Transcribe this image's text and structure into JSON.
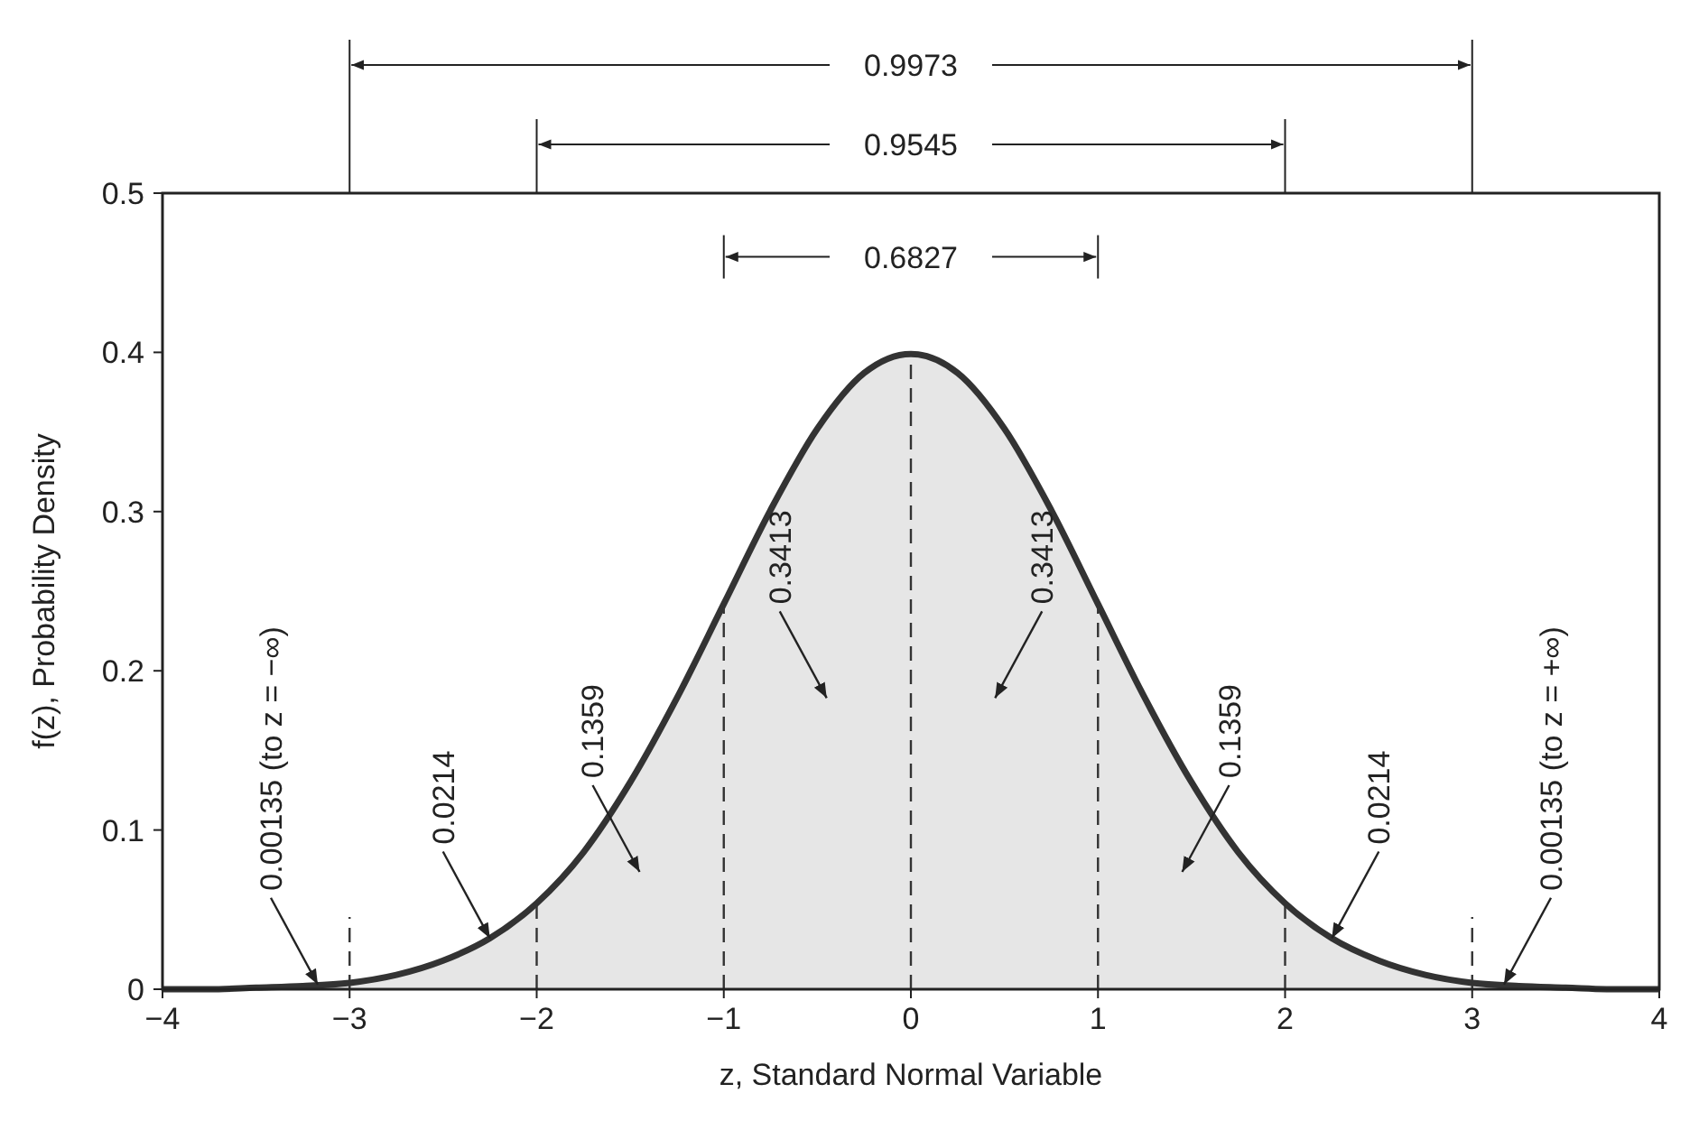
{
  "chart_data": {
    "type": "area",
    "xlabel": "z, Standard Normal Variable",
    "ylabel": "f(z), Probability Density",
    "xlim": [
      -4,
      4
    ],
    "ylim": [
      0,
      0.5
    ],
    "xticks": [
      {
        "value": -4,
        "label": "−4"
      },
      {
        "value": -3,
        "label": "−3"
      },
      {
        "value": -2,
        "label": "−2"
      },
      {
        "value": -1,
        "label": "−1"
      },
      0,
      1,
      2,
      3,
      4
    ],
    "yticks": [
      0,
      0.1,
      0.2,
      0.3,
      0.4,
      0.5
    ],
    "grid": false,
    "x": [
      -4,
      -3.75,
      -3.5,
      -3.25,
      -3,
      -2.75,
      -2.5,
      -2.25,
      -2,
      -1.75,
      -1.5,
      -1.25,
      -1,
      -0.75,
      -0.5,
      -0.25,
      0,
      0.25,
      0.5,
      0.75,
      1,
      1.25,
      1.5,
      1.75,
      2,
      2.25,
      2.5,
      2.75,
      3,
      3.25,
      3.5,
      3.75,
      4
    ],
    "series": [
      {
        "color": "#333333",
        "values": [
          0.0,
          0.0,
          0.001,
          0.002,
          0.004,
          0.009,
          0.018,
          0.032,
          0.054,
          0.086,
          0.13,
          0.183,
          0.242,
          0.301,
          0.352,
          0.387,
          0.399,
          0.387,
          0.352,
          0.301,
          0.242,
          0.183,
          0.13,
          0.086,
          0.054,
          0.032,
          0.018,
          0.009,
          0.004,
          0.002,
          0.001,
          0.0,
          0.0
        ]
      }
    ],
    "ref_lines": [
      {
        "axis": "x",
        "value": -3,
        "line_style": "dashed",
        "color": "#333333"
      },
      {
        "axis": "x",
        "value": -2,
        "line_style": "dashed",
        "color": "#333333"
      },
      {
        "axis": "x",
        "value": -1,
        "line_style": "dashed",
        "color": "#333333"
      },
      {
        "axis": "x",
        "value": 0,
        "line_style": "dashed",
        "color": "#333333"
      },
      {
        "axis": "x",
        "value": 1,
        "line_style": "dashed",
        "color": "#333333"
      },
      {
        "axis": "x",
        "value": 2,
        "line_style": "dashed",
        "color": "#333333"
      },
      {
        "axis": "x",
        "value": 3,
        "line_style": "dashed",
        "color": "#333333"
      }
    ],
    "annotations": [
      "0.9973",
      "0.9545",
      "0.6827",
      {
        "text": "0.00135 (to z = −∞)",
        "x": -3.17,
        "y": 0.003
      },
      {
        "text": "0.0214",
        "x": -2.25,
        "y": 0.032
      },
      "0.1359",
      "0.3413",
      "0.3413",
      "0.1359",
      {
        "text": "0.0214",
        "x": 2.25,
        "y": 0.032
      },
      {
        "text": "0.00135 (to z = +∞)",
        "x": 3.17,
        "y": 0.003
      }
    ]
  }
}
